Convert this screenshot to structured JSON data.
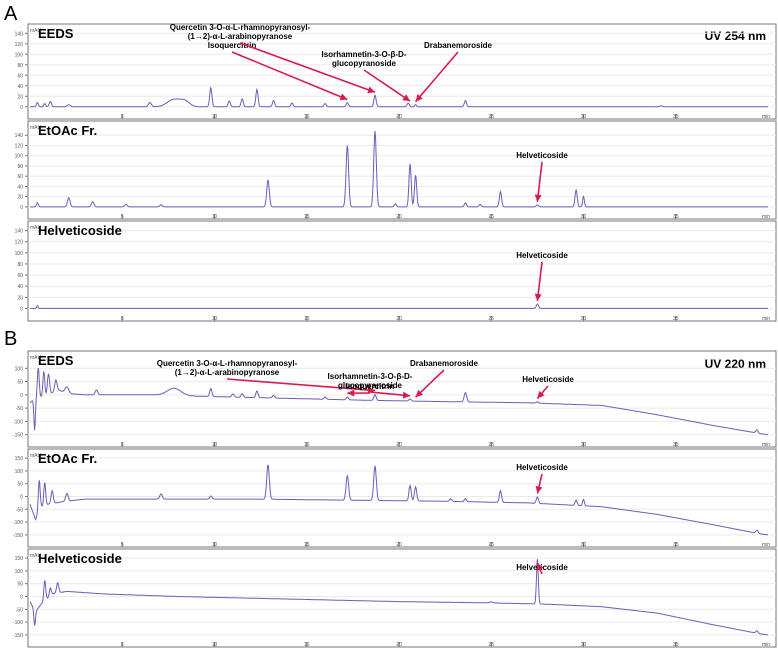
{
  "figure": {
    "panel_labels": [
      "A",
      "B"
    ],
    "wavelength_labels": [
      "UV 254 nm",
      "UV 220 nm"
    ]
  },
  "chart_data": [
    {
      "type": "line",
      "panel": "A",
      "title": "EEDS",
      "ylabel": "mAU",
      "xlabel": "min",
      "xlim": [
        0,
        40
      ],
      "ylim": [
        -10,
        150
      ],
      "yticks": [
        0,
        20,
        40,
        60,
        80,
        100,
        120,
        140
      ],
      "xticks": [
        5,
        10,
        15,
        20,
        25,
        30,
        35
      ],
      "baseline": {
        "points": [
          [
            0,
            0
          ],
          [
            40,
            0
          ]
        ]
      },
      "peaks": [
        {
          "x": 0.4,
          "h": 8,
          "w": 0.05
        },
        {
          "x": 0.8,
          "h": 6,
          "w": 0.05
        },
        {
          "x": 1.1,
          "h": 10,
          "w": 0.06
        },
        {
          "x": 2.1,
          "h": 4,
          "w": 0.08
        },
        {
          "x": 6.5,
          "h": 8,
          "w": 0.08
        },
        {
          "x": 7.8,
          "h": 14,
          "w": 0.35
        },
        {
          "x": 8.4,
          "h": 10,
          "w": 0.25
        },
        {
          "x": 9.8,
          "h": 36,
          "w": 0.06
        },
        {
          "x": 10.8,
          "h": 11,
          "w": 0.06
        },
        {
          "x": 11.5,
          "h": 15,
          "w": 0.06
        },
        {
          "x": 12.3,
          "h": 33,
          "w": 0.06
        },
        {
          "x": 13.2,
          "h": 12,
          "w": 0.06
        },
        {
          "x": 14.2,
          "h": 7,
          "w": 0.06
        },
        {
          "x": 16.0,
          "h": 6,
          "w": 0.06
        },
        {
          "x": 17.2,
          "h": 8,
          "w": 0.06
        },
        {
          "x": 18.7,
          "h": 22,
          "w": 0.06
        },
        {
          "x": 20.5,
          "h": 7,
          "w": 0.06
        },
        {
          "x": 20.9,
          "h": 4,
          "w": 0.05
        },
        {
          "x": 23.6,
          "h": 12,
          "w": 0.06
        },
        {
          "x": 34.2,
          "h": 2,
          "w": 0.06
        }
      ],
      "annotations": [
        {
          "text": "Isoquercitrin",
          "x": 17.2,
          "y": 8
        },
        {
          "text": "Quercetin 3-O-α-L-rhamnopyranosyl-",
          "text2": "(1→2)-α-L-arabinopyranose",
          "x": 18.7,
          "y": 22
        },
        {
          "text": "Isorhamnetin-3-O-β-D-",
          "text2": "glucopyranoside",
          "x": 20.6,
          "y": 5
        },
        {
          "text": "Drabanemoroside",
          "x": 20.9,
          "y": 4
        }
      ]
    },
    {
      "type": "line",
      "panel": "A",
      "title": "EtOAc Fr.",
      "ylabel": "mAU",
      "xlabel": "min",
      "xlim": [
        0,
        40
      ],
      "ylim": [
        -10,
        160
      ],
      "yticks": [
        0,
        20,
        40,
        60,
        80,
        100,
        120,
        140
      ],
      "xticks": [
        5,
        10,
        15,
        20,
        25,
        30,
        35
      ],
      "baseline": {
        "points": [
          [
            0,
            0
          ],
          [
            40,
            0
          ]
        ]
      },
      "peaks": [
        {
          "x": 0.4,
          "h": 8,
          "w": 0.05
        },
        {
          "x": 2.1,
          "h": 18,
          "w": 0.07
        },
        {
          "x": 3.4,
          "h": 10,
          "w": 0.07
        },
        {
          "x": 5.2,
          "h": 5,
          "w": 0.07
        },
        {
          "x": 7.1,
          "h": 4,
          "w": 0.07
        },
        {
          "x": 12.9,
          "h": 52,
          "w": 0.07
        },
        {
          "x": 17.2,
          "h": 120,
          "w": 0.07
        },
        {
          "x": 18.7,
          "h": 148,
          "w": 0.07
        },
        {
          "x": 19.8,
          "h": 6,
          "w": 0.06
        },
        {
          "x": 20.6,
          "h": 84,
          "w": 0.06
        },
        {
          "x": 20.9,
          "h": 62,
          "w": 0.06
        },
        {
          "x": 23.6,
          "h": 8,
          "w": 0.06
        },
        {
          "x": 24.4,
          "h": 5,
          "w": 0.06
        },
        {
          "x": 25.5,
          "h": 30,
          "w": 0.06
        },
        {
          "x": 27.5,
          "h": 4,
          "w": 0.06
        },
        {
          "x": 29.6,
          "h": 33,
          "w": 0.06
        },
        {
          "x": 30.0,
          "h": 20,
          "w": 0.05
        }
      ],
      "annotations": [
        {
          "text": "Helveticoside",
          "x": 27.5,
          "y": 4
        }
      ]
    },
    {
      "type": "line",
      "panel": "A",
      "title": "Helveticoside",
      "ylabel": "mAU",
      "xlabel": "min",
      "xlim": [
        0,
        40
      ],
      "ylim": [
        -10,
        150
      ],
      "yticks": [
        0,
        20,
        40,
        60,
        80,
        100,
        120,
        140
      ],
      "xticks": [
        5,
        10,
        15,
        20,
        25,
        30,
        35
      ],
      "baseline": {
        "points": [
          [
            0,
            0
          ],
          [
            40,
            0
          ]
        ]
      },
      "peaks": [
        {
          "x": 0.4,
          "h": 5,
          "w": 0.04
        },
        {
          "x": 27.5,
          "h": 8,
          "w": 0.06
        }
      ],
      "annotations": [
        {
          "text": "Helveticoside",
          "x": 27.5,
          "y": 8
        }
      ]
    },
    {
      "type": "line",
      "panel": "B",
      "title": "EEDS",
      "ylabel": "mAU",
      "xlabel": "min",
      "xlim": [
        0,
        40
      ],
      "ylim": [
        -170,
        150
      ],
      "yticks": [
        -150,
        -100,
        -50,
        0,
        50,
        100
      ],
      "xticks": [
        5,
        10,
        15,
        20,
        25,
        30,
        35
      ],
      "baseline": {
        "points": [
          [
            0,
            -30
          ],
          [
            0.3,
            -10
          ],
          [
            0.9,
            -5
          ],
          [
            1.5,
            20
          ],
          [
            2,
            5
          ],
          [
            3,
            0
          ],
          [
            8,
            0
          ],
          [
            9,
            -5
          ],
          [
            12,
            -10
          ],
          [
            18,
            -20
          ],
          [
            22,
            -25
          ],
          [
            27,
            -30
          ],
          [
            31,
            -40
          ],
          [
            34,
            -75
          ],
          [
            37,
            -115
          ],
          [
            39.5,
            -145
          ],
          [
            40,
            -150
          ]
        ]
      },
      "peaks": [
        {
          "x": 0.25,
          "h": -120,
          "w": 0.04
        },
        {
          "x": 0.45,
          "h": 110,
          "w": 0.05
        },
        {
          "x": 0.75,
          "h": 95,
          "w": 0.05
        },
        {
          "x": 1.0,
          "h": 80,
          "w": 0.06
        },
        {
          "x": 1.4,
          "h": 40,
          "w": 0.06
        },
        {
          "x": 2.0,
          "h": 25,
          "w": 0.1
        },
        {
          "x": 3.6,
          "h": 18,
          "w": 0.07
        },
        {
          "x": 7.8,
          "h": 25,
          "w": 0.35
        },
        {
          "x": 9.8,
          "h": 30,
          "w": 0.06
        },
        {
          "x": 11.0,
          "h": 12,
          "w": 0.06
        },
        {
          "x": 11.5,
          "h": 14,
          "w": 0.06
        },
        {
          "x": 12.3,
          "h": 25,
          "w": 0.06
        },
        {
          "x": 13.2,
          "h": 10,
          "w": 0.06
        },
        {
          "x": 16.0,
          "h": 8,
          "w": 0.06
        },
        {
          "x": 17.2,
          "h": 10,
          "w": 0.06
        },
        {
          "x": 18.7,
          "h": 22,
          "w": 0.06
        },
        {
          "x": 20.6,
          "h": 8,
          "w": 0.06
        },
        {
          "x": 23.6,
          "h": 35,
          "w": 0.07
        },
        {
          "x": 27.5,
          "h": 5,
          "w": 0.06
        },
        {
          "x": 39.4,
          "h": 12,
          "w": 0.06
        }
      ],
      "annotations": [
        {
          "text": "Quercetin 3-O-α-L-rhamnopyranosyl-",
          "text2": "(1→2)-α-L-arabinopyranose",
          "x": 18.7,
          "y": 5
        },
        {
          "text": "Isoquercitrin",
          "x": 17.2,
          "y": -5
        },
        {
          "text": "Isorhamnetin-3-O-β-D-",
          "text2": "glucopyranoside",
          "x": 20.6,
          "y": -15
        },
        {
          "text": "Drabanemoroside",
          "x": 20.9,
          "y": -20
        },
        {
          "text": "Helveticoside",
          "x": 27.5,
          "y": -25
        }
      ]
    },
    {
      "type": "line",
      "panel": "B",
      "title": "EtOAc Fr.",
      "ylabel": "mAU",
      "xlabel": "min",
      "xlim": [
        0,
        40
      ],
      "ylim": [
        -170,
        170
      ],
      "yticks": [
        -150,
        -100,
        -50,
        0,
        50,
        100,
        150
      ],
      "xticks": [
        5,
        10,
        15,
        20,
        25,
        30,
        35
      ],
      "baseline": {
        "points": [
          [
            0,
            -30
          ],
          [
            0.3,
            -90
          ],
          [
            0.6,
            -40
          ],
          [
            1,
            -30
          ],
          [
            1.8,
            -20
          ],
          [
            3,
            -10
          ],
          [
            8,
            -10
          ],
          [
            12,
            -10
          ],
          [
            18,
            -15
          ],
          [
            22,
            -18
          ],
          [
            27,
            -25
          ],
          [
            31,
            -40
          ],
          [
            34,
            -70
          ],
          [
            37,
            -110
          ],
          [
            39.5,
            -145
          ],
          [
            40,
            -150
          ]
        ]
      },
      "peaks": [
        {
          "x": 0.5,
          "h": 120,
          "w": 0.05
        },
        {
          "x": 0.8,
          "h": 90,
          "w": 0.05
        },
        {
          "x": 1.2,
          "h": 50,
          "w": 0.06
        },
        {
          "x": 2.0,
          "h": 30,
          "w": 0.07
        },
        {
          "x": 7.1,
          "h": 20,
          "w": 0.07
        },
        {
          "x": 9.8,
          "h": 12,
          "w": 0.06
        },
        {
          "x": 12.9,
          "h": 135,
          "w": 0.07
        },
        {
          "x": 17.2,
          "h": 95,
          "w": 0.07
        },
        {
          "x": 18.7,
          "h": 135,
          "w": 0.07
        },
        {
          "x": 20.6,
          "h": 60,
          "w": 0.06
        },
        {
          "x": 20.9,
          "h": 55,
          "w": 0.06
        },
        {
          "x": 22.8,
          "h": 10,
          "w": 0.06
        },
        {
          "x": 23.6,
          "h": 12,
          "w": 0.06
        },
        {
          "x": 25.5,
          "h": 45,
          "w": 0.06
        },
        {
          "x": 27.5,
          "h": 25,
          "w": 0.06
        },
        {
          "x": 29.6,
          "h": 20,
          "w": 0.06
        },
        {
          "x": 30.0,
          "h": 25,
          "w": 0.05
        },
        {
          "x": 39.4,
          "h": 12,
          "w": 0.06
        }
      ],
      "annotations": [
        {
          "text": "Helveticoside",
          "x": 27.5,
          "y": 0
        }
      ]
    },
    {
      "type": "line",
      "panel": "B",
      "title": "Helveticoside",
      "ylabel": "mAU",
      "xlabel": "min",
      "xlim": [
        0,
        40
      ],
      "ylim": [
        -170,
        170
      ],
      "yticks": [
        -150,
        -100,
        -50,
        0,
        50,
        100,
        150
      ],
      "xticks": [
        5,
        10,
        15,
        20,
        25,
        30,
        35
      ],
      "baseline": {
        "points": [
          [
            0,
            -20
          ],
          [
            0.3,
            -60
          ],
          [
            0.6,
            -30
          ],
          [
            1.2,
            10
          ],
          [
            2,
            20
          ],
          [
            4,
            10
          ],
          [
            8,
            0
          ],
          [
            14,
            -10
          ],
          [
            20,
            -20
          ],
          [
            25,
            -25
          ],
          [
            28,
            -30
          ],
          [
            31,
            -40
          ],
          [
            34,
            -65
          ],
          [
            37,
            -110
          ],
          [
            39.5,
            -145
          ],
          [
            40,
            -150
          ]
        ]
      },
      "peaks": [
        {
          "x": 0.25,
          "h": -60,
          "w": 0.04
        },
        {
          "x": 0.8,
          "h": 80,
          "w": 0.05
        },
        {
          "x": 1.1,
          "h": 30,
          "w": 0.05
        },
        {
          "x": 1.5,
          "h": 40,
          "w": 0.06
        },
        {
          "x": 25.0,
          "h": 4,
          "w": 0.08
        },
        {
          "x": 27.5,
          "h": 175,
          "w": 0.05
        },
        {
          "x": 39.4,
          "h": 10,
          "w": 0.06
        }
      ],
      "annotations": [
        {
          "text": "Helveticoside",
          "x": 27.5,
          "y": 120
        }
      ]
    }
  ]
}
